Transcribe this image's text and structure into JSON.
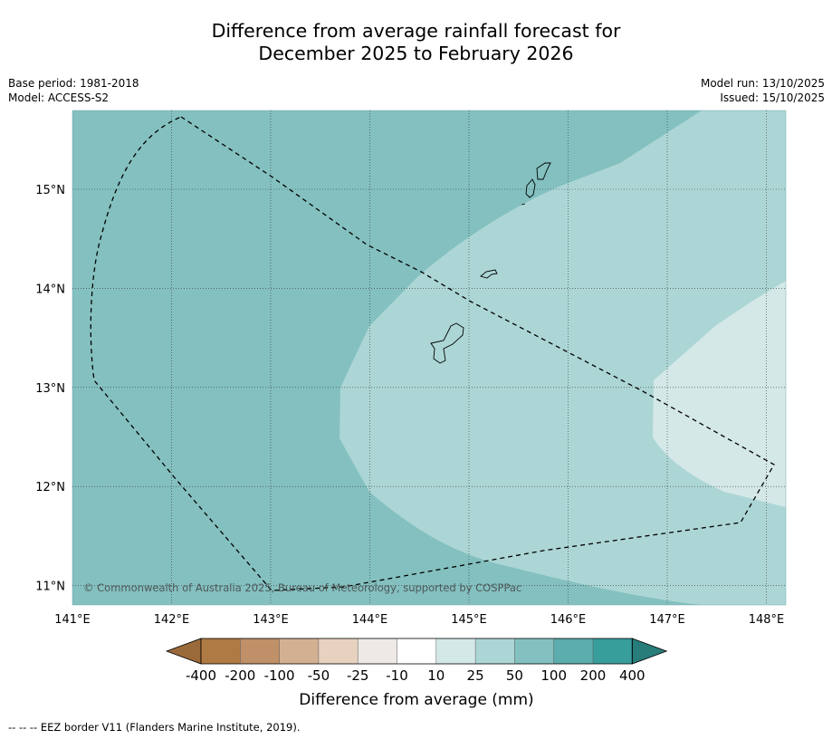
{
  "title": {
    "line1": "Difference from average rainfall forecast for",
    "line2": "December 2025 to February 2026"
  },
  "meta": {
    "base_period": "Base period: 1981-2018",
    "model": "Model: ACCESS-S2",
    "model_run": "Model run: 13/10/2025",
    "issued": "Issued: 15/10/2025"
  },
  "map": {
    "lon_labels": [
      "141°E",
      "142°E",
      "143°E",
      "144°E",
      "145°E",
      "146°E",
      "147°E",
      "148°E"
    ],
    "lat_labels": [
      "15°N",
      "14°N",
      "13°N",
      "12°N",
      "11°N"
    ],
    "copyright": "© Commonwealth of Australia 2025, Bureau of Meteorology, supported by COSPPac"
  },
  "legend": {
    "title": "Difference from average (mm)",
    "tick_labels": [
      "-400",
      "-200",
      "-100",
      "-50",
      "-25",
      "-10",
      "10",
      "25",
      "50",
      "100",
      "200",
      "400"
    ],
    "colors": [
      "#9b6a3a",
      "#b07a44",
      "#c09068",
      "#d4b092",
      "#e7d2c0",
      "#efe9e5",
      "#ffffff",
      "#d4e8e7",
      "#acd6d5",
      "#84c0c0",
      "#5cadad",
      "#379e9c",
      "#287d7b"
    ]
  },
  "footer": "--  --  -- EEZ border V11 (Flanders Marine Institute, 2019)."
}
